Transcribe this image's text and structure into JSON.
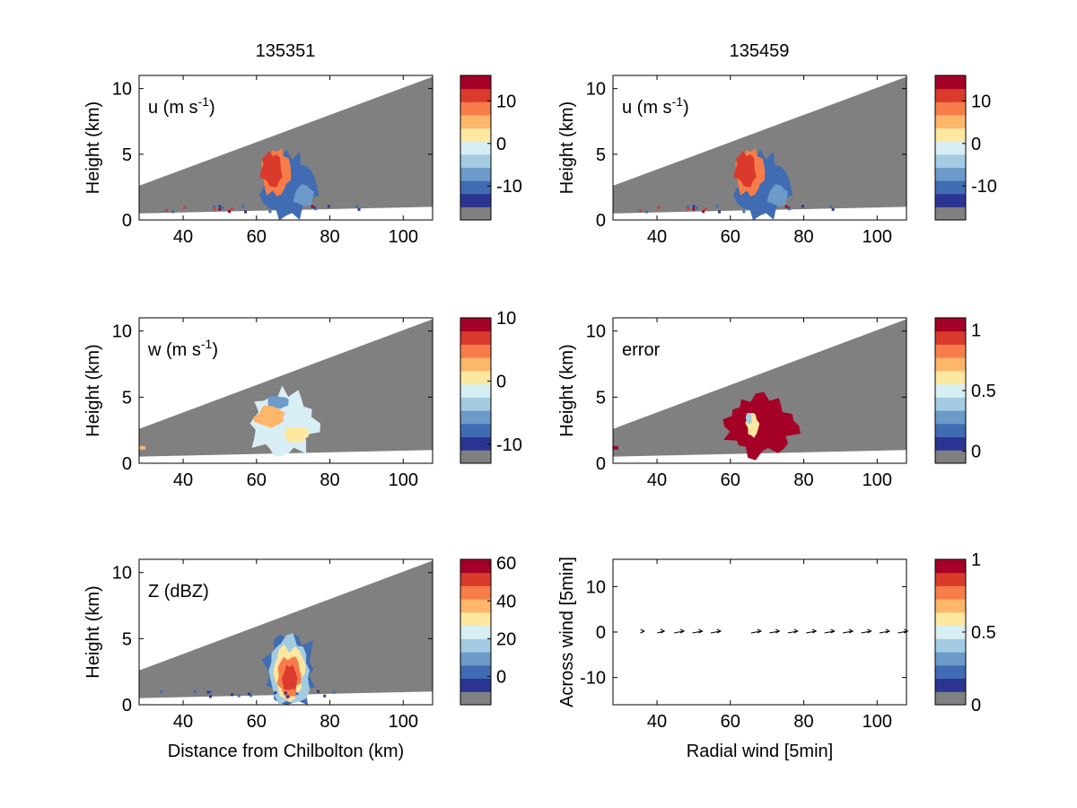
{
  "figure": {
    "column_titles": [
      "135351",
      "135459"
    ]
  },
  "colorbar_colors": [
    "#808080",
    "#2b3591",
    "#3f6cb2",
    "#6c9ac9",
    "#a3cce2",
    "#d8eef5",
    "#fee79e",
    "#fdb66a",
    "#f67d4a",
    "#da3a2c",
    "#a50026"
  ],
  "chart_data": [
    {
      "type": "heatmap",
      "name": "u-135351",
      "label": "u (m s",
      "label_sup": "-1",
      "label_tail": ")",
      "ylabel": "Height (km)",
      "xlabel": "",
      "xlim": [
        28,
        108
      ],
      "ylim": [
        0,
        11
      ],
      "xticks": [
        40,
        60,
        80,
        100
      ],
      "yticks": [
        0,
        5,
        10
      ],
      "colorbar": {
        "ticks": [
          "10",
          "0",
          "-10"
        ],
        "tick_values": [
          10,
          0,
          -10
        ],
        "range": [
          -18,
          16
        ]
      }
    },
    {
      "type": "heatmap",
      "name": "u-135459",
      "label": "u (m s",
      "label_sup": "-1",
      "label_tail": ")",
      "ylabel": "Height (km)",
      "xlabel": "",
      "xlim": [
        28,
        108
      ],
      "ylim": [
        0,
        11
      ],
      "xticks": [
        40,
        60,
        80,
        100
      ],
      "yticks": [
        0,
        5,
        10
      ],
      "colorbar": {
        "ticks": [
          "10",
          "0",
          "-10"
        ],
        "tick_values": [
          10,
          0,
          -10
        ],
        "range": [
          -18,
          16
        ]
      }
    },
    {
      "type": "heatmap",
      "name": "w-135351",
      "label": "w (m s",
      "label_sup": "-1",
      "label_tail": ")",
      "ylabel": "Height (km)",
      "xlabel": "",
      "xlim": [
        28,
        108
      ],
      "ylim": [
        0,
        11
      ],
      "xticks": [
        40,
        60,
        80,
        100
      ],
      "yticks": [
        0,
        5,
        10
      ],
      "colorbar": {
        "ticks": [
          "10",
          "0",
          "-10"
        ],
        "tick_values": [
          10,
          0,
          -10
        ],
        "range": [
          -13,
          10
        ]
      }
    },
    {
      "type": "heatmap",
      "name": "error-135459",
      "label": "error",
      "label_sup": "",
      "label_tail": "",
      "ylabel": "Height (km)",
      "xlabel": "",
      "xlim": [
        28,
        108
      ],
      "ylim": [
        0,
        11
      ],
      "xticks": [
        40,
        60,
        80,
        100
      ],
      "yticks": [
        0,
        5,
        10
      ],
      "colorbar": {
        "ticks": [
          "1",
          "0.5",
          "0"
        ],
        "tick_values": [
          1,
          0.5,
          0
        ],
        "range": [
          -0.1,
          1.1
        ]
      }
    },
    {
      "type": "heatmap",
      "name": "Z-135351",
      "label": "Z (dBZ)",
      "label_sup": "",
      "label_tail": "",
      "ylabel": "Height (km)",
      "xlabel": "Distance from Chilbolton (km)",
      "xlim": [
        28,
        108
      ],
      "ylim": [
        0,
        11
      ],
      "xticks": [
        40,
        60,
        80,
        100
      ],
      "yticks": [
        0,
        5,
        10
      ],
      "colorbar": {
        "ticks": [
          "60",
          "40",
          "20",
          "0"
        ],
        "tick_values": [
          60,
          40,
          20,
          0
        ],
        "range": [
          -15,
          62
        ]
      }
    },
    {
      "type": "scatter",
      "name": "wind-vectors",
      "label": "",
      "label_sup": "",
      "label_tail": "",
      "ylabel": "Across wind [5min]",
      "xlabel": "Radial wind [5min]",
      "xlim": [
        28,
        108
      ],
      "ylim": [
        -16,
        16
      ],
      "xticks": [
        40,
        60,
        80,
        100
      ],
      "yticks": [
        10,
        0,
        -10
      ],
      "x": [
        36,
        41,
        46,
        51,
        56,
        67,
        72,
        77,
        82,
        87,
        92,
        97,
        102,
        107
      ],
      "y": [
        0,
        0,
        0,
        0,
        0,
        0,
        0,
        0,
        0,
        0,
        0,
        0,
        0,
        0
      ],
      "colorbar": {
        "ticks": [
          "1",
          "0.5",
          "0"
        ],
        "tick_values": [
          1,
          0.5,
          0
        ],
        "range": [
          0,
          1
        ]
      }
    }
  ]
}
